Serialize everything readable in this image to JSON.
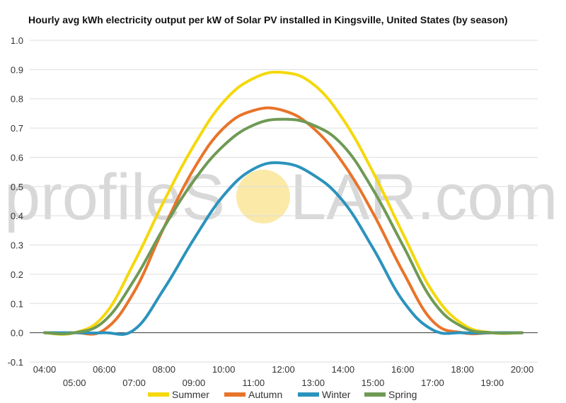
{
  "chart_data": {
    "type": "line",
    "title": "Hourly avg kWh electricity output per kW of Solar PV installed in Kingsville, United States (by season)",
    "xlabel": "",
    "ylabel": "",
    "ylim": [
      -0.1,
      1.0
    ],
    "yticks": [
      "1.0",
      "0.9",
      "0.8",
      "0.7",
      "0.6",
      "0.5",
      "0.4",
      "0.3",
      "0.2",
      "0.1",
      "0.0",
      "-0.1"
    ],
    "categories": [
      "04:00",
      "05:00",
      "06:00",
      "07:00",
      "08:00",
      "09:00",
      "10:00",
      "11:00",
      "12:00",
      "13:00",
      "14:00",
      "15:00",
      "16:00",
      "17:00",
      "18:00",
      "19:00",
      "20:00"
    ],
    "grid": true,
    "legend_position": "bottom",
    "series": [
      {
        "name": "Summer",
        "color": "#f5d80c",
        "values": [
          0.0,
          0.0,
          0.06,
          0.24,
          0.45,
          0.64,
          0.79,
          0.87,
          0.89,
          0.85,
          0.73,
          0.55,
          0.34,
          0.14,
          0.03,
          0.0,
          0.0
        ]
      },
      {
        "name": "Autumn",
        "color": "#e8742a",
        "values": [
          0.0,
          0.0,
          0.01,
          0.14,
          0.36,
          0.56,
          0.7,
          0.76,
          0.76,
          0.7,
          0.58,
          0.41,
          0.21,
          0.04,
          0.0,
          0.0,
          0.0
        ]
      },
      {
        "name": "Winter",
        "color": "#2b93bd",
        "values": [
          0.0,
          0.0,
          0.0,
          0.01,
          0.15,
          0.32,
          0.47,
          0.56,
          0.58,
          0.54,
          0.45,
          0.29,
          0.11,
          0.01,
          0.0,
          0.0,
          0.0
        ]
      },
      {
        "name": "Spring",
        "color": "#6f9a55",
        "values": [
          0.0,
          0.0,
          0.04,
          0.18,
          0.36,
          0.52,
          0.64,
          0.71,
          0.73,
          0.71,
          0.64,
          0.49,
          0.3,
          0.11,
          0.02,
          0.0,
          0.0
        ]
      }
    ]
  },
  "watermark": {
    "text_left": "profileS",
    "text_right": "LAR.com",
    "sun_color": "#fbe9a8"
  }
}
